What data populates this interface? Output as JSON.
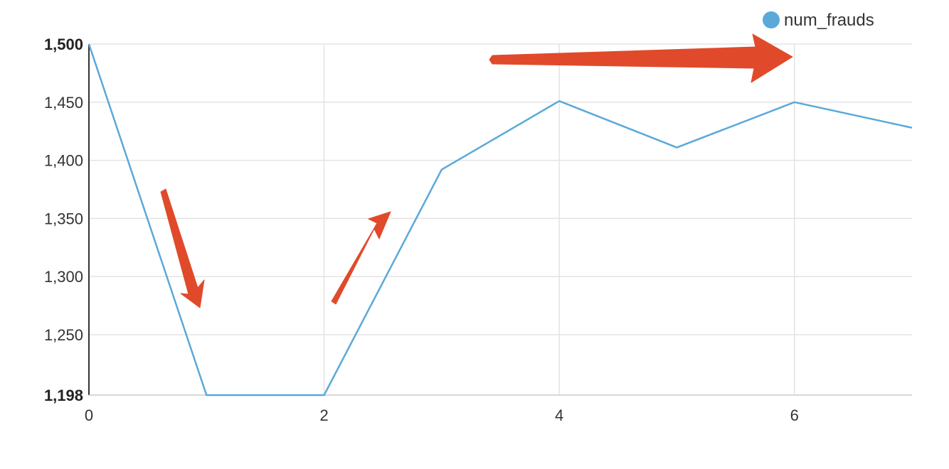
{
  "chart_data": {
    "type": "line",
    "title": "",
    "xlabel": "",
    "ylabel": "",
    "xlim": [
      0,
      7
    ],
    "ylim": [
      1198,
      1500
    ],
    "x_ticks": [
      0,
      2,
      4,
      6
    ],
    "x_tick_labels": [
      "0",
      "2",
      "4",
      "6"
    ],
    "y_ticks": [
      1198,
      1250,
      1300,
      1350,
      1400,
      1450,
      1500
    ],
    "y_tick_labels": [
      "1,198",
      "1,250",
      "1,300",
      "1,350",
      "1,400",
      "1,450",
      "1,500"
    ],
    "y_tick_bold": [
      "1,198",
      "1,500"
    ],
    "grid": true,
    "legend_position": "top-right",
    "series": [
      {
        "name": "num_frauds",
        "color": "#5aa9d9",
        "x": [
          0,
          1,
          2,
          3,
          4,
          5,
          6,
          7
        ],
        "y": [
          1500,
          1198,
          1198,
          1392,
          1451,
          1411,
          1450,
          1428
        ]
      }
    ],
    "annotations": [
      {
        "type": "arrow",
        "direction": "down",
        "color": "#e04a2a",
        "near_x": 1
      },
      {
        "type": "arrow",
        "direction": "up",
        "color": "#e04a2a",
        "near_x": 2.5
      },
      {
        "type": "arrow",
        "direction": "right",
        "color": "#e04a2a",
        "near_x": 5
      }
    ]
  }
}
